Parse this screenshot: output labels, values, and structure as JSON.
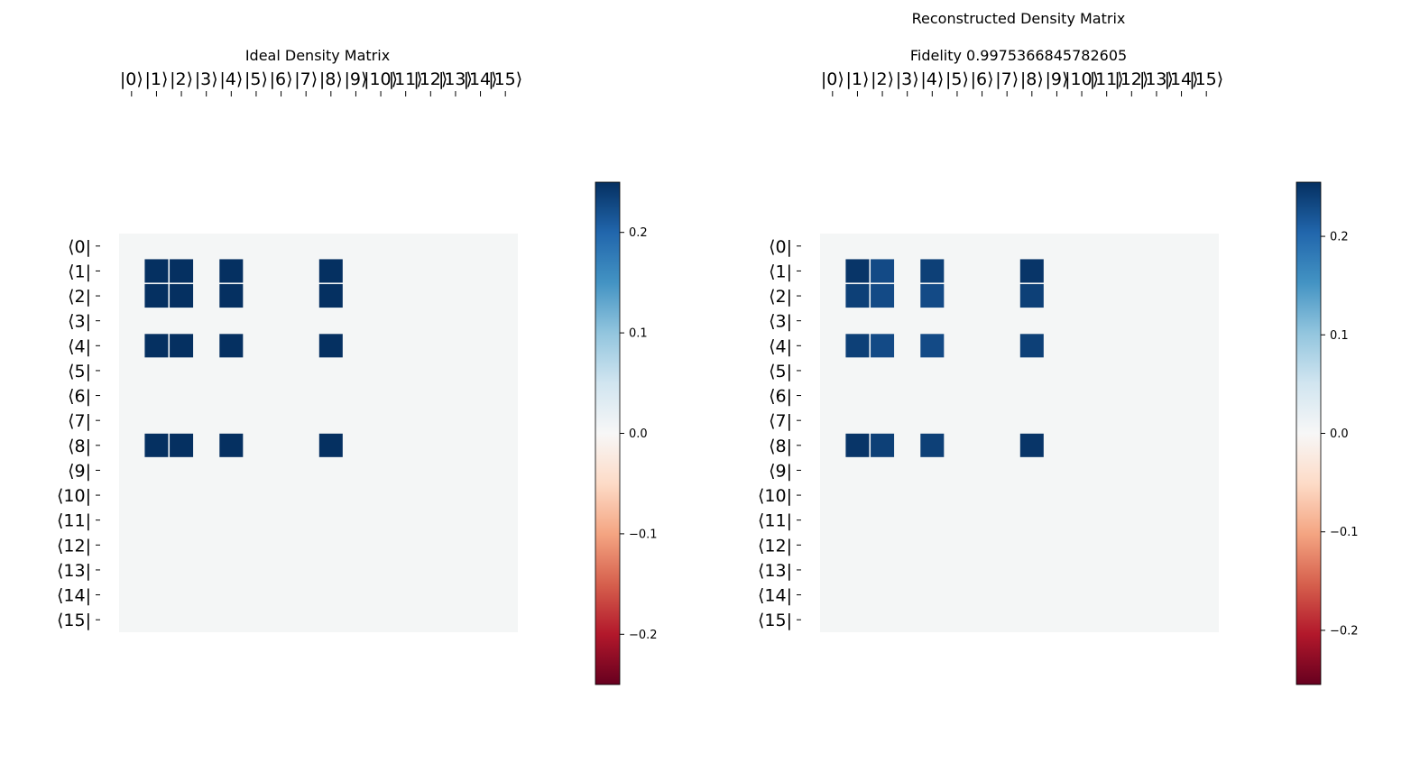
{
  "chart_data": [
    {
      "type": "heatmap",
      "title": "Ideal Density Matrix",
      "subtitle": "",
      "x_tick_labels": [
        "|0⟩",
        "|1⟩",
        "|2⟩",
        "|3⟩",
        "|4⟩",
        "|5⟩",
        "|6⟩",
        "|7⟩",
        "|8⟩",
        "|9⟩",
        "|10⟩",
        "|11⟩",
        "|12⟩",
        "|13⟩",
        "|14⟩",
        "|15⟩"
      ],
      "y_tick_labels": [
        "⟨0|",
        "⟨1|",
        "⟨2|",
        "⟨3|",
        "⟨4|",
        "⟨5|",
        "⟨6|",
        "⟨7|",
        "⟨8|",
        "⟨9|",
        "⟨10|",
        "⟨11|",
        "⟨12|",
        "⟨13|",
        "⟨14|",
        "⟨15|"
      ],
      "dimension": 16,
      "cells": [
        {
          "row": 1,
          "col": 1,
          "value": 0.25
        },
        {
          "row": 1,
          "col": 2,
          "value": 0.25
        },
        {
          "row": 1,
          "col": 4,
          "value": 0.25
        },
        {
          "row": 1,
          "col": 8,
          "value": 0.25
        },
        {
          "row": 2,
          "col": 1,
          "value": 0.25
        },
        {
          "row": 2,
          "col": 2,
          "value": 0.25
        },
        {
          "row": 2,
          "col": 4,
          "value": 0.25
        },
        {
          "row": 2,
          "col": 8,
          "value": 0.25
        },
        {
          "row": 4,
          "col": 1,
          "value": 0.25
        },
        {
          "row": 4,
          "col": 2,
          "value": 0.25
        },
        {
          "row": 4,
          "col": 4,
          "value": 0.25
        },
        {
          "row": 4,
          "col": 8,
          "value": 0.25
        },
        {
          "row": 8,
          "col": 1,
          "value": 0.25
        },
        {
          "row": 8,
          "col": 2,
          "value": 0.25
        },
        {
          "row": 8,
          "col": 4,
          "value": 0.25
        },
        {
          "row": 8,
          "col": 8,
          "value": 0.25
        }
      ],
      "colorbar": {
        "colormap": "RdBu",
        "range": [
          -0.25,
          0.25
        ],
        "ticks": [
          "0.2",
          "0.1",
          "0.0",
          "−0.1",
          "−0.2"
        ],
        "tick_values": [
          0.2,
          0.1,
          0.0,
          -0.1,
          -0.2
        ]
      }
    },
    {
      "type": "heatmap",
      "title": "Reconstructed Density Matrix",
      "subtitle": "Fidelity 0.9975366845782605",
      "x_tick_labels": [
        "|0⟩",
        "|1⟩",
        "|2⟩",
        "|3⟩",
        "|4⟩",
        "|5⟩",
        "|6⟩",
        "|7⟩",
        "|8⟩",
        "|9⟩",
        "|10⟩",
        "|11⟩",
        "|12⟩",
        "|13⟩",
        "|14⟩",
        "|15⟩"
      ],
      "y_tick_labels": [
        "⟨0|",
        "⟨1|",
        "⟨2|",
        "⟨3|",
        "⟨4|",
        "⟨5|",
        "⟨6|",
        "⟨7|",
        "⟨8|",
        "⟨9|",
        "⟨10|",
        "⟨11|",
        "⟨12|",
        "⟨13|",
        "⟨14|",
        "⟨15|"
      ],
      "dimension": 16,
      "cells": [
        {
          "row": 1,
          "col": 1,
          "value": 0.25
        },
        {
          "row": 1,
          "col": 2,
          "value": 0.23
        },
        {
          "row": 1,
          "col": 4,
          "value": 0.24
        },
        {
          "row": 1,
          "col": 8,
          "value": 0.25
        },
        {
          "row": 2,
          "col": 1,
          "value": 0.24
        },
        {
          "row": 2,
          "col": 2,
          "value": 0.23
        },
        {
          "row": 2,
          "col": 4,
          "value": 0.23
        },
        {
          "row": 2,
          "col": 8,
          "value": 0.24
        },
        {
          "row": 4,
          "col": 1,
          "value": 0.24
        },
        {
          "row": 4,
          "col": 2,
          "value": 0.23
        },
        {
          "row": 4,
          "col": 4,
          "value": 0.23
        },
        {
          "row": 4,
          "col": 8,
          "value": 0.24
        },
        {
          "row": 8,
          "col": 1,
          "value": 0.25
        },
        {
          "row": 8,
          "col": 2,
          "value": 0.24
        },
        {
          "row": 8,
          "col": 4,
          "value": 0.24
        },
        {
          "row": 8,
          "col": 8,
          "value": 0.25
        }
      ],
      "colorbar": {
        "colormap": "RdBu",
        "range": [
          -0.255,
          0.255
        ],
        "ticks": [
          "0.2",
          "0.1",
          "0.0",
          "−0.1",
          "−0.2"
        ],
        "tick_values": [
          0.2,
          0.1,
          0.0,
          -0.1,
          -0.2
        ]
      }
    }
  ]
}
